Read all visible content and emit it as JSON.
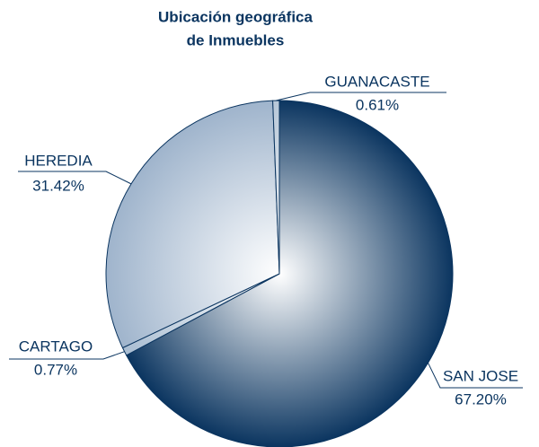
{
  "chart_data": {
    "type": "pie",
    "title": [
      "Ubicación geográfica",
      "de Inmuebles"
    ],
    "categories": [
      "SAN JOSE",
      "CARTAGO",
      "HEREDIA",
      "GUANACASTE"
    ],
    "values": [
      67.2,
      0.77,
      31.42,
      0.61
    ],
    "value_labels": [
      "67.20%",
      "0.77%",
      "31.42%",
      "0.61%"
    ],
    "colors": [
      "#0b3560",
      "#a9bdd2",
      "#9fb4cc",
      "#b7c7d8"
    ]
  }
}
